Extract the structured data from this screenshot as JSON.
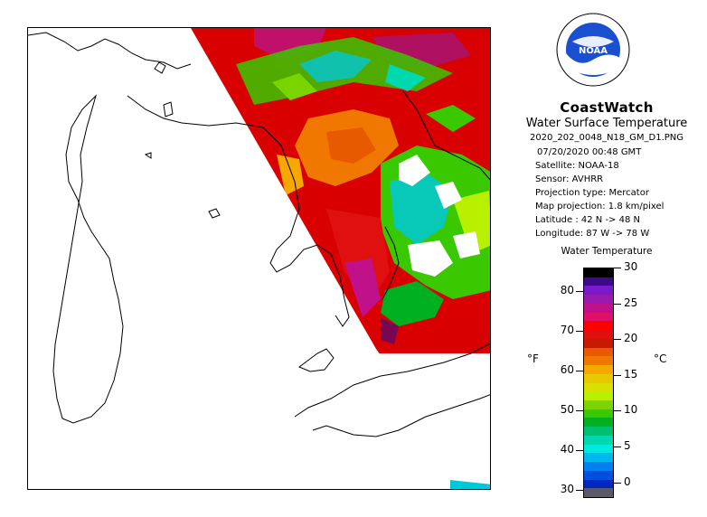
{
  "header": {
    "brand": "CoastWatch",
    "subtitle": "Water Surface Temperature",
    "filename": "2020_202_0048_N18_GM_D1.PNG"
  },
  "logo": {
    "icon": "noaa-logo-icon",
    "text": "NOAA"
  },
  "metadata": {
    "datetime": "07/20/2020    00:48 GMT",
    "satellite": "Satellite: NOAA-18",
    "sensor": "Sensor: AVHRR",
    "projection_type": "Projection type:  Mercator",
    "map_projection": "Map projection: 1.8 km/pixel",
    "latitude": "Latitude : 42 N -> 48 N",
    "longitude": "Longitude: 87 W -> 78 W"
  },
  "legend": {
    "title": "Water Temperature",
    "unit_f": "°F",
    "unit_c": "°C",
    "fahrenheit_ticks": [
      "80",
      "70",
      "60",
      "50",
      "40",
      "30"
    ],
    "celsius_ticks": [
      "30",
      "25",
      "20",
      "15",
      "10",
      "5",
      "0"
    ],
    "colors": [
      "#000000",
      "#3a0a8a",
      "#7a1acc",
      "#9a1ab0",
      "#c0108a",
      "#e0106a",
      "#ff0000",
      "#e01010",
      "#c81a00",
      "#e85a00",
      "#f07800",
      "#f7a800",
      "#e8c800",
      "#d8e000",
      "#b8f000",
      "#7ad400",
      "#3ac800",
      "#00b020",
      "#00c070",
      "#00d8b0",
      "#00e8e0",
      "#00b8f0",
      "#0080f0",
      "#0050e0",
      "#0028c0",
      "#5a5a6a"
    ]
  },
  "map": {
    "region": "Lake Huron / Georgian Bay / Lake Michigan",
    "colors": {
      "warm_red": "#e00000",
      "orange": "#f07800",
      "green": "#3ac800",
      "cyan": "#00c8d8",
      "magenta": "#c000a0",
      "cloud_white": "#ffffff",
      "coastline": "#000000"
    }
  }
}
